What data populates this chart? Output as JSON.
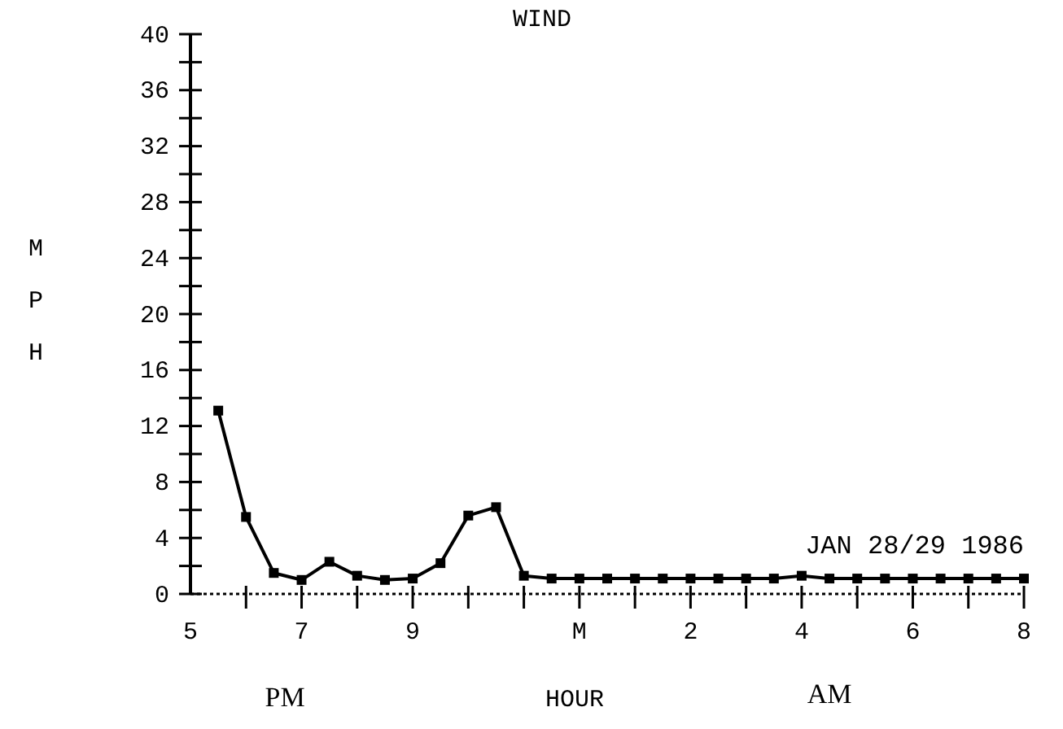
{
  "chart_data": {
    "type": "line",
    "title": "WIND",
    "xlabel": "HOUR",
    "ylabel": "MPH",
    "annotations": [
      "JAN 28/29 1986",
      "PM",
      "AM"
    ],
    "categories": [
      "5",
      null,
      null,
      null,
      "7",
      null,
      null,
      null,
      "9",
      null,
      null,
      null,
      null,
      null,
      "M",
      null,
      null,
      null,
      "2",
      null,
      null,
      null,
      "4",
      null,
      null,
      null,
      "6",
      null,
      null,
      null,
      "8"
    ],
    "series": [
      {
        "color": "#000000",
        "values": [
          null,
          13.1,
          5.5,
          1.5,
          1.0,
          2.3,
          1.3,
          1.0,
          1.1,
          2.2,
          5.6,
          6.2,
          1.3,
          1.1,
          1.1,
          1.1,
          1.1,
          1.1,
          1.1,
          1.1,
          1.1,
          1.1,
          1.3,
          1.1,
          1.1,
          1.1,
          1.1,
          1.1,
          1.1,
          1.1,
          1.1
        ]
      }
    ],
    "ylim": [
      0,
      40
    ],
    "yticks": [
      0,
      {
        "value": 2,
        "label": null
      },
      4,
      {
        "value": 6,
        "label": null
      },
      8,
      {
        "value": 10,
        "label": null
      },
      12,
      {
        "value": 14,
        "label": null
      },
      16,
      {
        "value": 18,
        "label": null
      },
      20,
      {
        "value": 22,
        "label": null
      },
      24,
      {
        "value": 26,
        "label": null
      },
      28,
      {
        "value": 30,
        "label": null
      },
      32,
      {
        "value": 34,
        "label": null
      },
      36,
      {
        "value": 38,
        "label": null
      },
      40
    ],
    "marker": "square",
    "line_style": "solid",
    "grid": false
  }
}
